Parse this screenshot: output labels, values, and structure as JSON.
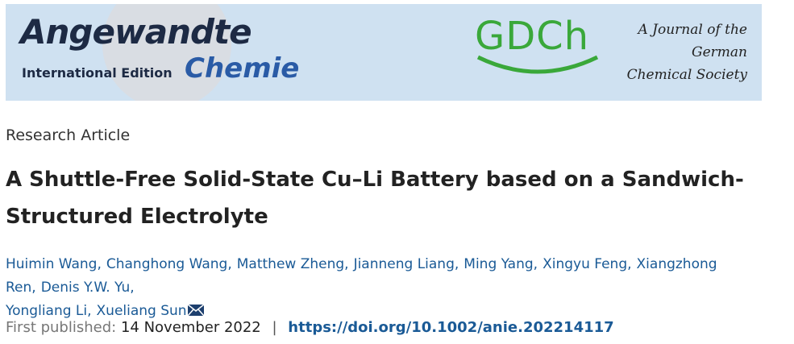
{
  "banner": {
    "logo_word": "Angewandte",
    "edition": "International Edition",
    "logo_chemie": "Chemie",
    "society_logo": "GDCh",
    "tagline": [
      "A Journal of the",
      "German",
      "Chemical Society"
    ]
  },
  "article_type": "Research Article",
  "title": "A Shuttle-Free Solid-State Cu–Li Battery based on a Sandwich-Structured Electrolyte",
  "authors": [
    "Huimin Wang,",
    "Changhong Wang,",
    "Matthew Zheng,",
    "Jianneng Liang,",
    "Ming Yang,",
    "Xingyu Feng,",
    "Xiangzhong Ren,",
    "Denis Y.W. Yu,",
    "Yongliang Li,",
    "Xueliang Sun"
  ],
  "published": {
    "label": "First published:",
    "date": "14 November 2022",
    "separator": "|",
    "doi": "https://doi.org/10.1002/anie.202214117"
  }
}
